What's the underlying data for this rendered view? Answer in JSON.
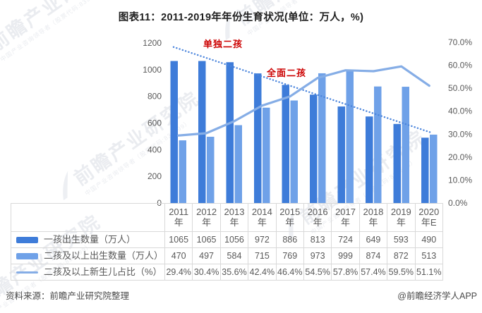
{
  "title": "图表11：2011-2019年年份生育状况(单位：万人，%)",
  "annotations": [
    {
      "text": "单独二孩",
      "color": "#cc0000"
    },
    {
      "text": "全面二孩",
      "color": "#cc0000"
    }
  ],
  "chart_data": {
    "type": "bar",
    "title": "图表11：2011-2019年年份生育状况(单位：万人，%)",
    "categories": [
      "2011年",
      "2012年",
      "2013年",
      "2014年",
      "2015年",
      "2016年",
      "2017年",
      "2018年",
      "2019年",
      "2020年E"
    ],
    "series": [
      {
        "name": "一孩出生数量（万人）",
        "type": "bar",
        "axis": "left",
        "color": "#3e7cd9",
        "values": [
          1065,
          1065,
          1056,
          972,
          886,
          813,
          724,
          649,
          593,
          490
        ]
      },
      {
        "name": "二孩及以上出生数量（万人）",
        "type": "bar",
        "axis": "left",
        "color": "#6fa1e8",
        "values": [
          470,
          497,
          584,
          715,
          769,
          973,
          999,
          874,
          872,
          513
        ]
      },
      {
        "name": "二孩及以上新生儿占比（%）",
        "type": "line",
        "axis": "right",
        "color": "#85ade6",
        "values": [
          29.4,
          30.4,
          35.6,
          42.4,
          46.4,
          54.5,
          57.8,
          57.4,
          59.5,
          51.1
        ],
        "labels": [
          "29.4%",
          "30.4%",
          "35.6%",
          "42.4%",
          "46.4%",
          "54.5%",
          "57.8%",
          "57.4%",
          "59.5%",
          "51.1%"
        ]
      }
    ],
    "trendline": {
      "style": "dotted",
      "color": "#4a84dc",
      "from": 1170,
      "to": 530
    },
    "left_axis": {
      "min": 0,
      "max": 1200,
      "ticks": [
        1200,
        1000,
        800,
        600,
        400,
        200,
        0
      ]
    },
    "right_axis": {
      "min": 0,
      "max": 70,
      "ticks": [
        "70.0%",
        "60.0%",
        "50.0%",
        "40.0%",
        "30.0%",
        "20.0%",
        "10.0%",
        "0.0%"
      ]
    },
    "grid": false,
    "legend_position": "table-left"
  },
  "footer": {
    "source": "资料来源：前瞻产业研究院整理",
    "credit": "@前瞻经济学人APP"
  },
  "watermark": {
    "text": "前瞻产业研究院",
    "subtext": "中国产业咨询领导者（股票代码:839599）"
  }
}
